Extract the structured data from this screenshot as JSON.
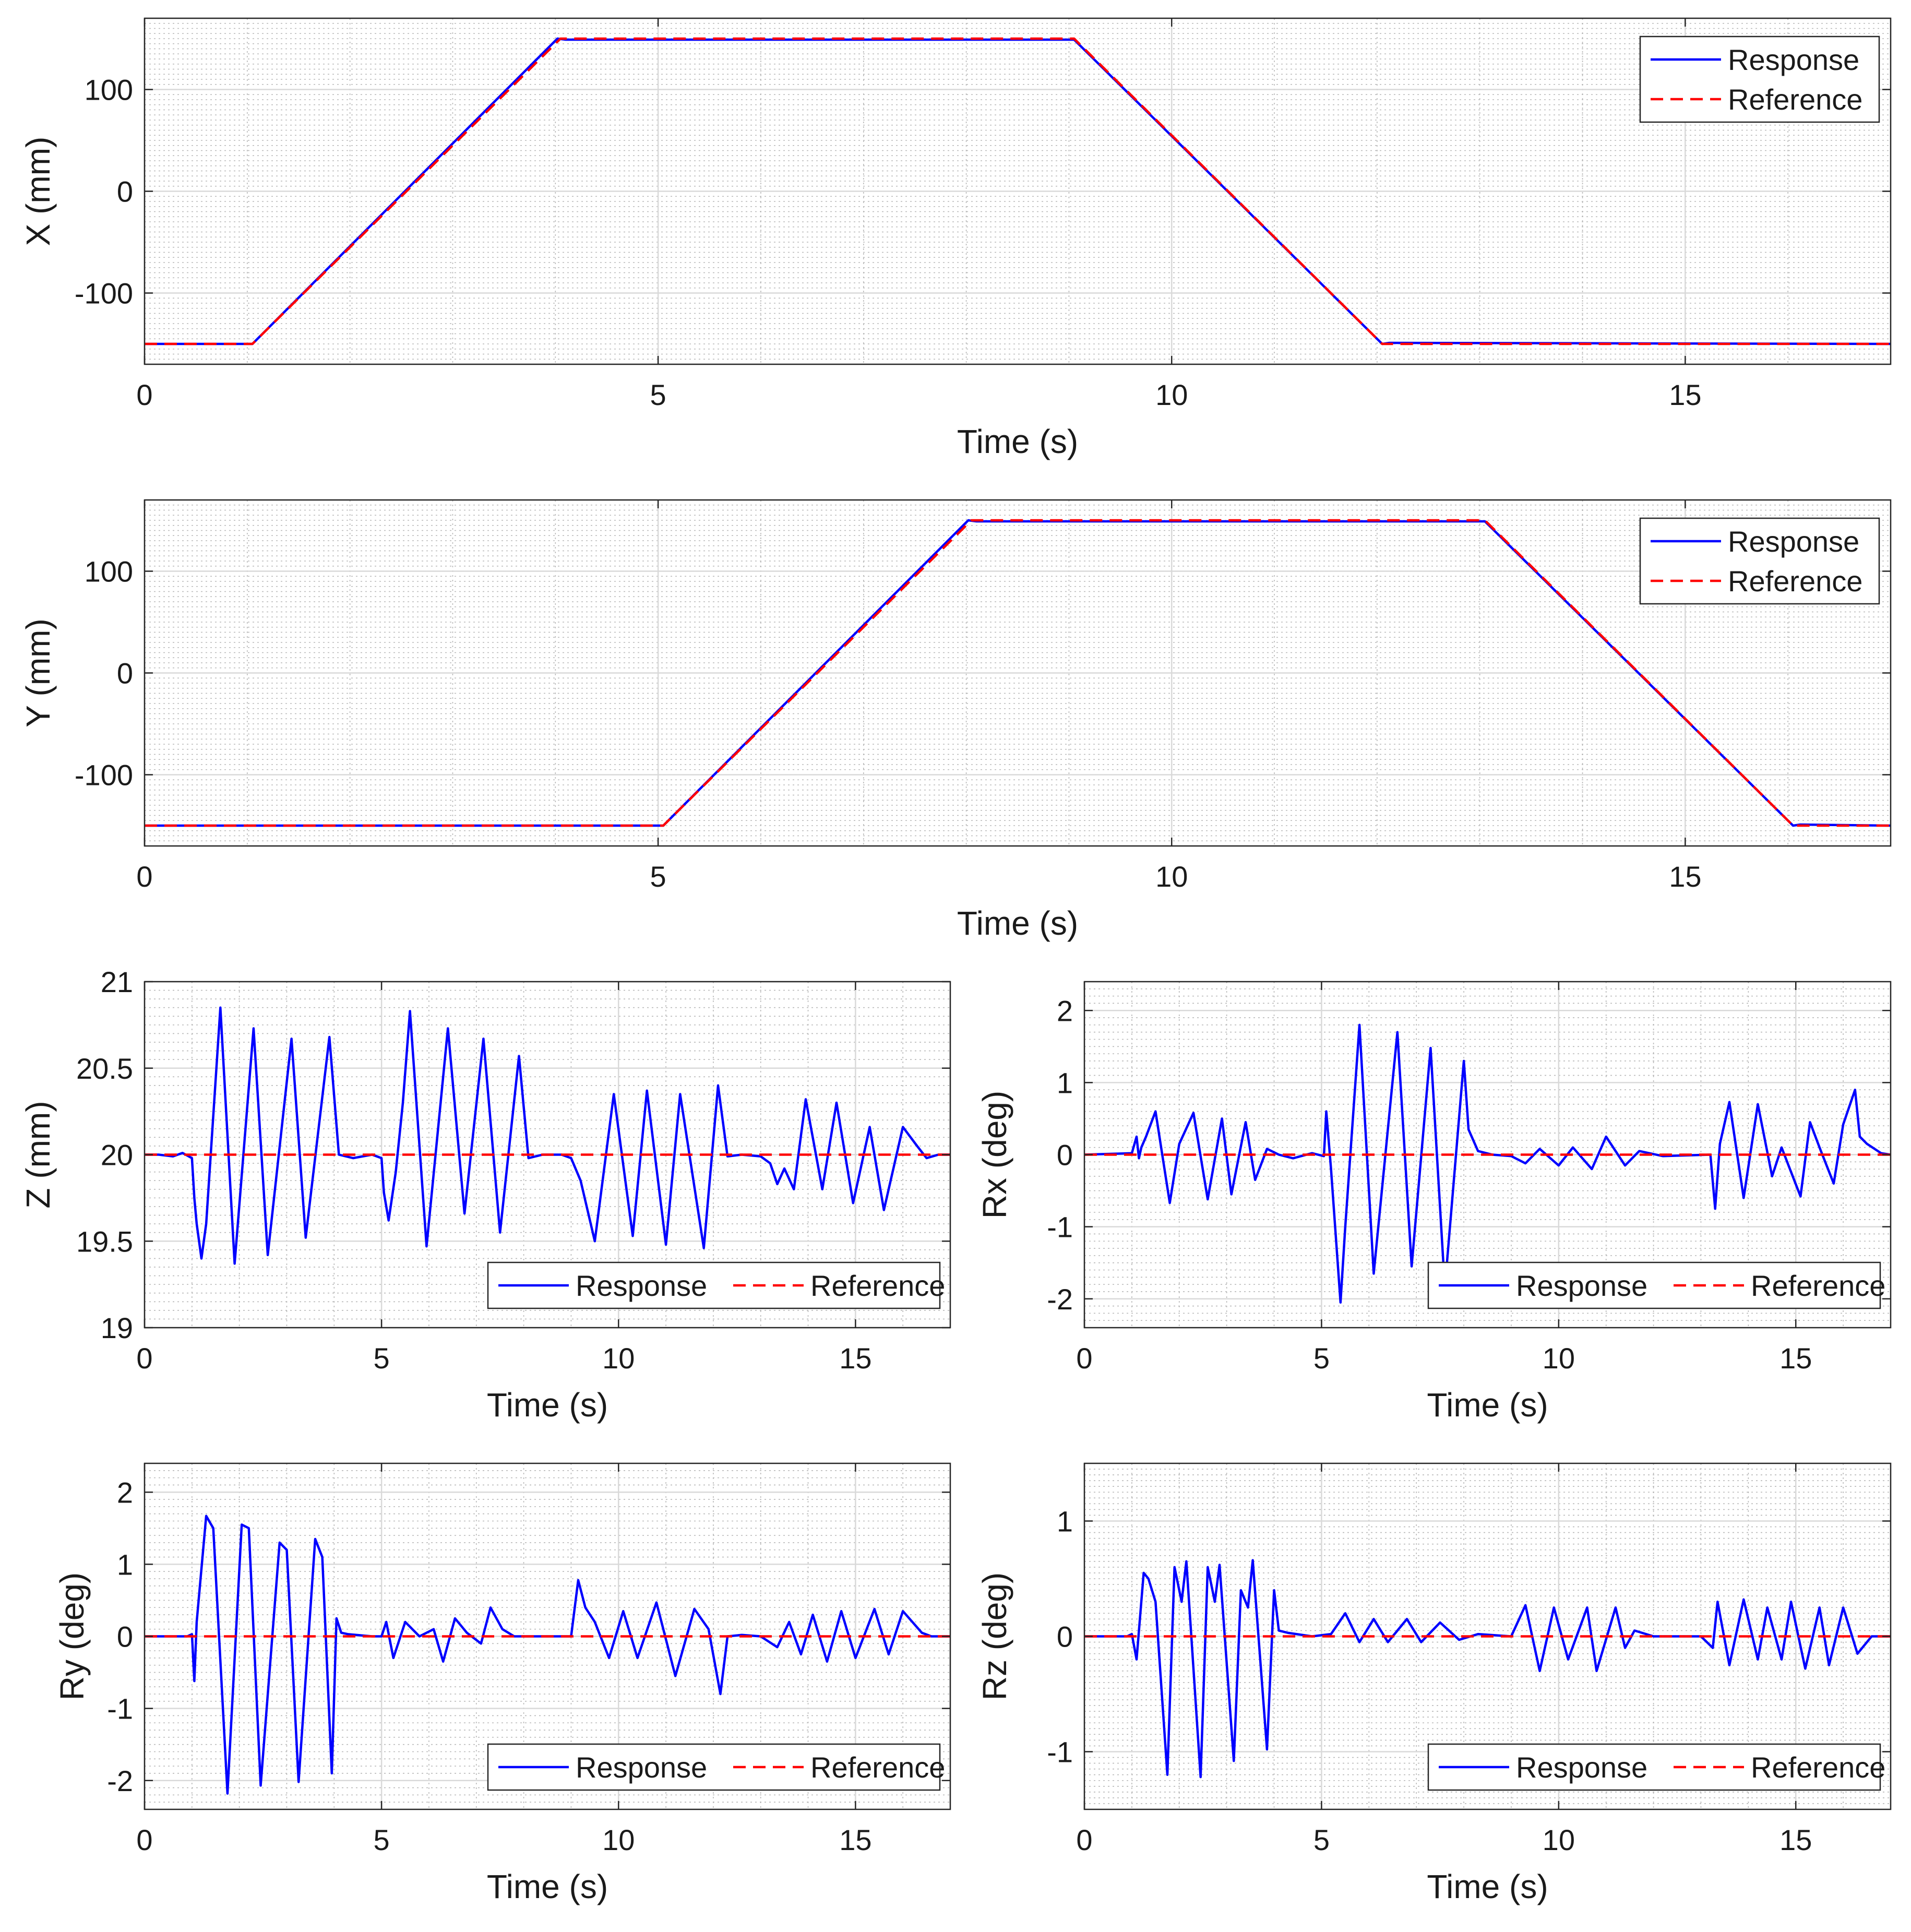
{
  "colors": {
    "response": "#0000ff",
    "reference": "#ff0000",
    "grid_major": "#d9d9d9",
    "grid_minor": "#b8b8b8",
    "axes": "#262626"
  },
  "legend": {
    "response_label": "Response",
    "reference_label": "Reference"
  },
  "chart_data": [
    {
      "id": "x",
      "type": "line",
      "title": "",
      "xlabel": "Time (s)",
      "ylabel": "X (mm)",
      "xlim": [
        0,
        17
      ],
      "ylim": [
        -170,
        170
      ],
      "xticks": [
        0,
        5,
        10,
        15
      ],
      "yticks": [
        -100,
        0,
        100
      ],
      "legend_location": "top-right",
      "grid": true,
      "series": [
        {
          "name": "Response",
          "kind": "response",
          "x": [
            0,
            1.05,
            4.02,
            4.1,
            9.05,
            12.05,
            12.12,
            17
          ],
          "y": [
            -150,
            -150,
            150,
            149,
            149,
            -150,
            -149,
            -150
          ]
        },
        {
          "name": "Reference",
          "kind": "reference",
          "x": [
            0,
            1.05,
            4.05,
            9.05,
            12.05,
            17
          ],
          "y": [
            -150,
            -150,
            150,
            150,
            -150,
            -150
          ]
        }
      ]
    },
    {
      "id": "y",
      "type": "line",
      "title": "",
      "xlabel": "Time (s)",
      "ylabel": "Y (mm)",
      "xlim": [
        0,
        17
      ],
      "ylim": [
        -170,
        170
      ],
      "xticks": [
        0,
        5,
        10,
        15
      ],
      "yticks": [
        -100,
        0,
        100
      ],
      "legend_location": "top-right",
      "grid": true,
      "series": [
        {
          "name": "Response",
          "kind": "response",
          "x": [
            0,
            5.05,
            8.02,
            8.1,
            13.05,
            16.05,
            16.12,
            17
          ],
          "y": [
            -150,
            -150,
            150,
            149,
            149,
            -150,
            -149,
            -150
          ]
        },
        {
          "name": "Reference",
          "kind": "reference",
          "x": [
            0,
            5.05,
            8.05,
            13.05,
            16.05,
            17
          ],
          "y": [
            -150,
            -150,
            150,
            150,
            -150,
            -150
          ]
        }
      ]
    },
    {
      "id": "z",
      "type": "line",
      "title": "",
      "xlabel": "Time (s)",
      "ylabel": "Z (mm)",
      "xlim": [
        0,
        17
      ],
      "ylim": [
        19,
        21
      ],
      "xticks": [
        0,
        5,
        10,
        15
      ],
      "yticks": [
        19,
        19.5,
        20,
        20.5,
        21
      ],
      "legend_location": "bottom-right",
      "grid": true,
      "series": [
        {
          "name": "Response",
          "kind": "response",
          "x": [
            0,
            0.3,
            0.6,
            0.8,
            1.0,
            1.05,
            1.1,
            1.2,
            1.3,
            1.6,
            1.9,
            2.3,
            2.6,
            3.1,
            3.4,
            3.9,
            4.1,
            4.4,
            4.8,
            5.0,
            5.05,
            5.15,
            5.3,
            5.45,
            5.6,
            5.95,
            6.4,
            6.75,
            7.15,
            7.5,
            7.9,
            8.1,
            8.4,
            8.8,
            9.0,
            9.2,
            9.5,
            9.9,
            10.3,
            10.6,
            11.0,
            11.3,
            11.8,
            12.1,
            12.3,
            12.6,
            13.0,
            13.2,
            13.35,
            13.5,
            13.7,
            13.95,
            14.3,
            14.6,
            14.95,
            15.3,
            15.6,
            16.0,
            16.3,
            16.5,
            16.75,
            17.0
          ],
          "y": [
            20.0,
            20.0,
            19.99,
            20.01,
            19.98,
            19.75,
            19.6,
            19.4,
            19.6,
            20.85,
            19.37,
            20.73,
            19.42,
            20.67,
            19.52,
            20.68,
            20.0,
            19.98,
            20.0,
            19.98,
            19.78,
            19.62,
            19.9,
            20.3,
            20.83,
            19.47,
            20.73,
            19.66,
            20.67,
            19.55,
            20.57,
            19.98,
            20.0,
            20.0,
            19.98,
            19.85,
            19.5,
            20.35,
            19.53,
            20.37,
            19.48,
            20.35,
            19.46,
            20.4,
            19.99,
            20.0,
            19.99,
            19.95,
            19.83,
            19.92,
            19.8,
            20.32,
            19.8,
            20.3,
            19.72,
            20.16,
            19.68,
            20.16,
            20.05,
            19.98,
            20.0,
            20.0
          ]
        },
        {
          "name": "Reference",
          "kind": "reference",
          "x": [
            0,
            17
          ],
          "y": [
            20,
            20
          ]
        }
      ]
    },
    {
      "id": "rx",
      "type": "line",
      "title": "",
      "xlabel": "Time (s)",
      "ylabel": "Rx (deg)",
      "xlim": [
        0,
        17
      ],
      "ylim": [
        -2.4,
        2.4
      ],
      "xticks": [
        0,
        5,
        10,
        15
      ],
      "yticks": [
        -2,
        -1,
        0,
        1,
        2
      ],
      "legend_location": "bottom-right",
      "grid": true,
      "series": [
        {
          "name": "Response",
          "kind": "response",
          "x": [
            0,
            1.0,
            1.1,
            1.15,
            1.2,
            1.3,
            1.5,
            1.8,
            2.0,
            2.3,
            2.6,
            2.9,
            3.1,
            3.4,
            3.6,
            3.85,
            4.1,
            4.4,
            4.8,
            5.05,
            5.1,
            5.2,
            5.4,
            5.5,
            5.8,
            6.1,
            6.6,
            6.9,
            7.3,
            7.6,
            8.0,
            8.1,
            8.3,
            8.6,
            9.0,
            9.3,
            9.6,
            10.0,
            10.3,
            10.7,
            11.0,
            11.4,
            11.7,
            12.2,
            13.2,
            13.3,
            13.4,
            13.6,
            13.9,
            14.2,
            14.5,
            14.7,
            15.1,
            15.3,
            15.5,
            15.8,
            16.0,
            16.25,
            16.35,
            16.5,
            16.8,
            17.0
          ],
          "y": [
            0.0,
            0.02,
            0.25,
            -0.05,
            0.1,
            0.25,
            0.6,
            -0.67,
            0.15,
            0.58,
            -0.62,
            0.5,
            -0.55,
            0.45,
            -0.35,
            0.08,
            0.0,
            -0.05,
            0.02,
            -0.02,
            0.6,
            -0.2,
            -2.05,
            -1.0,
            1.8,
            -1.65,
            1.7,
            -1.55,
            1.48,
            -1.85,
            1.3,
            0.35,
            0.05,
            0.0,
            -0.02,
            -0.12,
            0.08,
            -0.15,
            0.1,
            -0.2,
            0.25,
            -0.15,
            0.05,
            -0.02,
            0.0,
            -0.75,
            0.15,
            0.73,
            -0.6,
            0.7,
            -0.3,
            0.1,
            -0.58,
            0.45,
            0.1,
            -0.4,
            0.42,
            0.9,
            0.25,
            0.15,
            0.02,
            0.0
          ]
        },
        {
          "name": "Reference",
          "kind": "reference",
          "x": [
            0,
            17
          ],
          "y": [
            0,
            0
          ]
        }
      ]
    },
    {
      "id": "ry",
      "type": "line",
      "title": "",
      "xlabel": "Time (s)",
      "ylabel": "Ry (deg)",
      "xlim": [
        0,
        17
      ],
      "ylim": [
        -2.4,
        2.4
      ],
      "xticks": [
        0,
        5,
        10,
        15
      ],
      "yticks": [
        -2,
        -1,
        0,
        1,
        2
      ],
      "legend_location": "bottom-right",
      "grid": true,
      "series": [
        {
          "name": "Response",
          "kind": "response",
          "x": [
            0,
            0.9,
            1.0,
            1.05,
            1.1,
            1.3,
            1.45,
            1.75,
            2.05,
            2.2,
            2.45,
            2.85,
            3.0,
            3.25,
            3.6,
            3.75,
            3.95,
            4.05,
            4.15,
            4.3,
            4.8,
            5.0,
            5.1,
            5.25,
            5.5,
            5.8,
            6.1,
            6.3,
            6.55,
            6.8,
            7.1,
            7.3,
            7.55,
            7.8,
            8.1,
            8.5,
            9.0,
            9.15,
            9.3,
            9.5,
            9.8,
            10.1,
            10.4,
            10.8,
            11.2,
            11.6,
            11.9,
            12.15,
            12.3,
            12.6,
            13.0,
            13.35,
            13.6,
            13.85,
            14.1,
            14.4,
            14.7,
            15.0,
            15.4,
            15.7,
            16.0,
            16.4,
            16.6,
            17.0
          ],
          "y": [
            0.0,
            0.0,
            0.03,
            -0.62,
            0.2,
            1.67,
            1.5,
            -2.18,
            1.55,
            1.5,
            -2.07,
            1.3,
            1.2,
            -2.02,
            1.35,
            1.1,
            -1.9,
            0.25,
            0.05,
            0.03,
            0.0,
            0.0,
            0.2,
            -0.3,
            0.2,
            0.0,
            0.1,
            -0.35,
            0.25,
            0.05,
            -0.1,
            0.4,
            0.1,
            0.0,
            0.0,
            0.0,
            0.0,
            0.78,
            0.4,
            0.2,
            -0.3,
            0.35,
            -0.3,
            0.47,
            -0.55,
            0.38,
            0.1,
            -0.8,
            0.0,
            0.02,
            0.0,
            -0.15,
            0.2,
            -0.25,
            0.3,
            -0.35,
            0.35,
            -0.3,
            0.38,
            -0.25,
            0.35,
            0.05,
            0.0,
            0.0
          ]
        },
        {
          "name": "Reference",
          "kind": "reference",
          "x": [
            0,
            17
          ],
          "y": [
            0,
            0
          ]
        }
      ]
    },
    {
      "id": "rz",
      "type": "line",
      "title": "",
      "xlabel": "Time (s)",
      "ylabel": "Rz (deg)",
      "xlim": [
        0,
        17
      ],
      "ylim": [
        -1.5,
        1.5
      ],
      "xticks": [
        0,
        5,
        10,
        15
      ],
      "yticks": [
        -1,
        0,
        1
      ],
      "legend_location": "bottom-right",
      "grid": true,
      "series": [
        {
          "name": "Response",
          "kind": "response",
          "x": [
            0,
            0.9,
            1.0,
            1.1,
            1.25,
            1.35,
            1.5,
            1.75,
            1.9,
            2.05,
            2.15,
            2.45,
            2.6,
            2.75,
            2.85,
            3.15,
            3.3,
            3.45,
            3.55,
            3.85,
            4.0,
            4.1,
            4.3,
            4.8,
            5.2,
            5.5,
            5.8,
            6.1,
            6.4,
            6.8,
            7.1,
            7.5,
            7.9,
            8.3,
            9.0,
            9.3,
            9.6,
            9.9,
            10.2,
            10.6,
            10.8,
            11.2,
            11.4,
            11.6,
            12.0,
            13.0,
            13.25,
            13.35,
            13.6,
            13.9,
            14.2,
            14.4,
            14.7,
            14.9,
            15.2,
            15.5,
            15.7,
            16.0,
            16.3,
            16.6,
            17.0
          ],
          "y": [
            0.0,
            0.0,
            0.02,
            -0.2,
            0.55,
            0.5,
            0.3,
            -1.2,
            0.6,
            0.3,
            0.65,
            -1.22,
            0.6,
            0.3,
            0.62,
            -1.08,
            0.4,
            0.25,
            0.66,
            -0.98,
            0.4,
            0.05,
            0.03,
            0.0,
            0.02,
            0.2,
            -0.05,
            0.15,
            -0.05,
            0.15,
            -0.05,
            0.12,
            -0.03,
            0.02,
            0.0,
            0.27,
            -0.3,
            0.25,
            -0.2,
            0.25,
            -0.3,
            0.25,
            -0.1,
            0.05,
            0.0,
            0.0,
            -0.1,
            0.3,
            -0.25,
            0.32,
            -0.2,
            0.25,
            -0.2,
            0.3,
            -0.28,
            0.25,
            -0.25,
            0.25,
            -0.15,
            0.0,
            0.0
          ]
        },
        {
          "name": "Reference",
          "kind": "reference",
          "x": [
            0,
            17
          ],
          "y": [
            0,
            0
          ]
        }
      ]
    }
  ]
}
